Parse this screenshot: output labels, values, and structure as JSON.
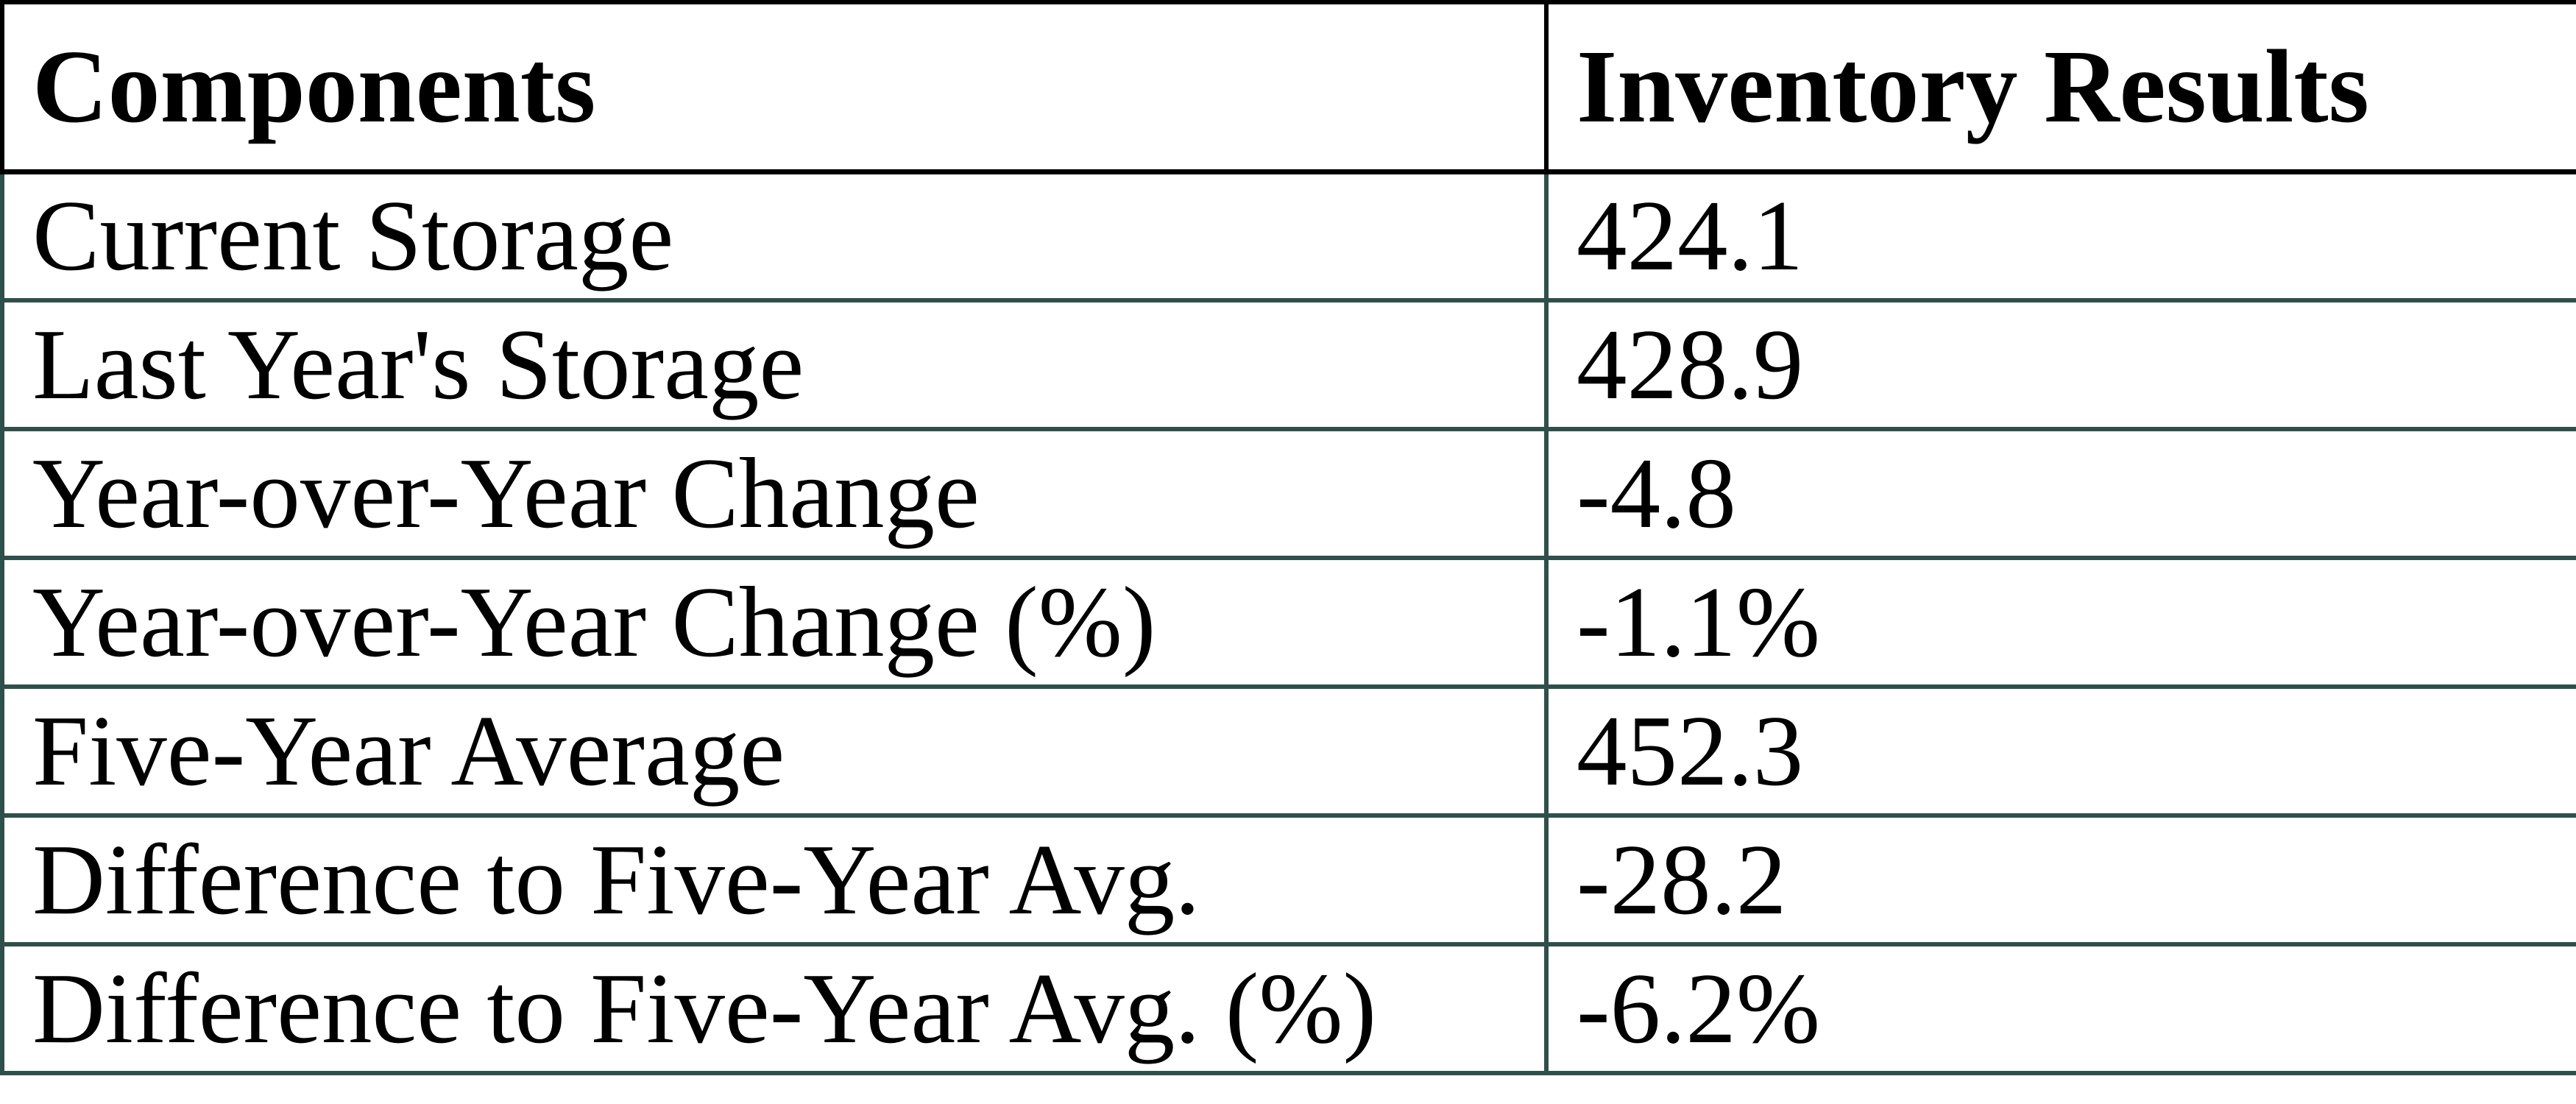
{
  "page": {
    "background": "#FFFFFF"
  },
  "table": {
    "columns": [
      "Components",
      "Inventory Results"
    ],
    "rows": [
      {
        "component": "Current Storage",
        "result": "424.1"
      },
      {
        "component": "Last Year's Storage",
        "result": "428.9"
      },
      {
        "component": "Year-over-Year Change",
        "result": "-4.8"
      },
      {
        "component": "Year-over-Year Change (%)",
        "result": "-1.1%"
      },
      {
        "component": "Five-Year Average",
        "result": "452.3"
      },
      {
        "component": "Difference to Five-Year Avg.",
        "result": "-28.2"
      },
      {
        "component": "Difference to Five-Year Avg. (%)",
        "result": "-6.2%"
      }
    ],
    "colors": {
      "header_border": "#000000",
      "body_border": "#2F4F4A",
      "text": "#000000",
      "background": "#FFFFFF"
    }
  },
  "chart_data": {
    "type": "table",
    "title": "",
    "columns": [
      "Components",
      "Inventory Results"
    ],
    "rows": [
      [
        "Current Storage",
        "424.1"
      ],
      [
        "Last Year's Storage",
        "428.9"
      ],
      [
        "Year-over-Year Change",
        "-4.8"
      ],
      [
        "Year-over-Year Change (%)",
        "-1.1%"
      ],
      [
        "Five-Year Average",
        "452.3"
      ],
      [
        "Difference to Five-Year Avg.",
        "-28.2"
      ],
      [
        "Difference to Five-Year Avg. (%)",
        "-6.2%"
      ]
    ],
    "layout_hints": {
      "header_style": "bold, black borders",
      "body_style": "regular, dark-teal borders",
      "column_split_ratio": 0.6
    }
  }
}
